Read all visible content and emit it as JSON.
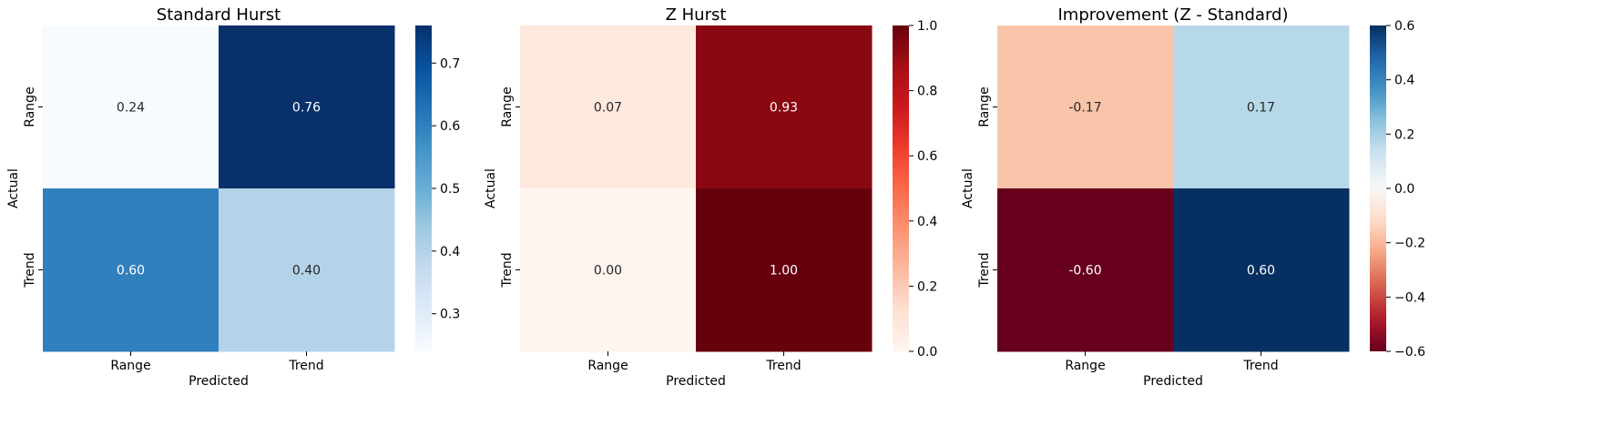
{
  "chart_data": [
    {
      "type": "heatmap",
      "title": "Standard Hurst",
      "xlabel": "Predicted",
      "ylabel": "Actual",
      "x_categories": [
        "Range",
        "Trend"
      ],
      "y_categories": [
        "Range",
        "Trend"
      ],
      "values": [
        [
          0.24,
          0.76
        ],
        [
          0.6,
          0.4
        ]
      ],
      "annotations": [
        [
          "0.24",
          "0.76"
        ],
        [
          "0.60",
          "0.40"
        ]
      ],
      "colormap": "Blues",
      "vmin": 0.24,
      "vmax": 0.76,
      "colorbar_ticks": [
        0.3,
        0.4,
        0.5,
        0.6,
        0.7
      ],
      "colorbar_tick_labels": [
        "0.3",
        "0.4",
        "0.5",
        "0.6",
        "0.7"
      ]
    },
    {
      "type": "heatmap",
      "title": "Z Hurst",
      "xlabel": "Predicted",
      "ylabel": "Actual",
      "x_categories": [
        "Range",
        "Trend"
      ],
      "y_categories": [
        "Range",
        "Trend"
      ],
      "values": [
        [
          0.07,
          0.93
        ],
        [
          0.0,
          1.0
        ]
      ],
      "annotations": [
        [
          "0.07",
          "0.93"
        ],
        [
          "0.00",
          "1.00"
        ]
      ],
      "colormap": "Reds",
      "vmin": 0.0,
      "vmax": 1.0,
      "colorbar_ticks": [
        0.0,
        0.2,
        0.4,
        0.6,
        0.8,
        1.0
      ],
      "colorbar_tick_labels": [
        "0.0",
        "0.2",
        "0.4",
        "0.6",
        "0.8",
        "1.0"
      ]
    },
    {
      "type": "heatmap",
      "title": "Improvement (Z - Standard)",
      "xlabel": "Predicted",
      "ylabel": "Actual",
      "x_categories": [
        "Range",
        "Trend"
      ],
      "y_categories": [
        "Range",
        "Trend"
      ],
      "values": [
        [
          -0.17,
          0.17
        ],
        [
          -0.6,
          0.6
        ]
      ],
      "annotations": [
        [
          "-0.17",
          "0.17"
        ],
        [
          "-0.60",
          "0.60"
        ]
      ],
      "colormap": "RdBu",
      "vmin": -0.6,
      "vmax": 0.6,
      "colorbar_ticks": [
        -0.6,
        -0.4,
        -0.2,
        0.0,
        0.2,
        0.4,
        0.6
      ],
      "colorbar_tick_labels": [
        "−0.6",
        "−0.4",
        "−0.2",
        "0.0",
        "0.2",
        "0.4",
        "0.6"
      ]
    }
  ]
}
